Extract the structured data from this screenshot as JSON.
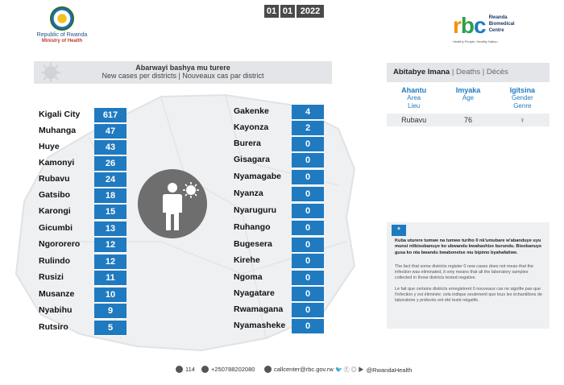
{
  "logos": {
    "left_line1": "Republic of Rwanda",
    "left_line2": "Ministry of Health",
    "right_mark": "rbc",
    "right_name": [
      "Rwanda",
      "Biomedical",
      "Centre"
    ],
    "right_tagline": "Healthy People, Healthy Nation"
  },
  "header": {
    "title": "Abarwayi bashya mu turere",
    "subtitle": "New cases per districts  |  Nouveaux cas par district",
    "date": {
      "day": "01",
      "month": "01",
      "year": "2022"
    }
  },
  "districts_left": [
    {
      "name": "Kigali City",
      "value": "617"
    },
    {
      "name": "Muhanga",
      "value": "47"
    },
    {
      "name": "Huye",
      "value": "43"
    },
    {
      "name": "Kamonyi",
      "value": "26"
    },
    {
      "name": "Rubavu",
      "value": "24"
    },
    {
      "name": "Gatsibo",
      "value": "18"
    },
    {
      "name": "Karongi",
      "value": "15"
    },
    {
      "name": "Gicumbi",
      "value": "13"
    },
    {
      "name": "Ngororero",
      "value": "12"
    },
    {
      "name": "Rulindo",
      "value": "12"
    },
    {
      "name": "Rusizi",
      "value": "11"
    },
    {
      "name": "Musanze",
      "value": "10"
    },
    {
      "name": "Nyabihu",
      "value": "9"
    },
    {
      "name": "Rutsiro",
      "value": "5"
    }
  ],
  "districts_right": [
    {
      "name": "Gakenke",
      "value": "4"
    },
    {
      "name": "Kayonza",
      "value": "2"
    },
    {
      "name": "Burera",
      "value": "0"
    },
    {
      "name": "Gisagara",
      "value": "0"
    },
    {
      "name": "Nyamagabe",
      "value": "0"
    },
    {
      "name": "Nyanza",
      "value": "0"
    },
    {
      "name": "Nyaruguru",
      "value": "0"
    },
    {
      "name": "Ruhango",
      "value": "0"
    },
    {
      "name": "Bugesera",
      "value": "0"
    },
    {
      "name": "Kirehe",
      "value": "0"
    },
    {
      "name": "Ngoma",
      "value": "0"
    },
    {
      "name": "Nyagatare",
      "value": "0"
    },
    {
      "name": "Rwamagana",
      "value": "0"
    },
    {
      "name": "Nyamasheke",
      "value": "0"
    }
  ],
  "deaths": {
    "title": "Abitabye Imana",
    "deaths_en": "Deaths",
    "deaths_fr": "Décès",
    "cols": [
      {
        "main": "Ahantu",
        "en": "Area",
        "fr": "Lieu"
      },
      {
        "main": "Imyaka",
        "en": "Age",
        "fr": ""
      },
      {
        "main": "Igitsina",
        "en": "Gender",
        "fr": "Genre"
      }
    ],
    "row": {
      "area": "Rubavu",
      "age": "76",
      "gender": "♀"
    }
  },
  "note": {
    "badge": "*",
    "kinyarwanda": "Kuba uturere tumwe na tumwe turiho 0 nk'umubare w'abanduye uyu munsi ntibisobanuye ko ubwandu bwahashize burundu. Bisobanuye gusa ko nta bwandu bwabonetse mu bipimo byahafatiwe.",
    "english": "The fact that some districts register 0 new cases does not mean that the infection was eliminated, it only means that all the laboratory samples collected in those districts tested negative.",
    "french": "Le fait que certains districts enregistrent 0 nouveaux cas ne signifie pas que l'infection y est éliminée; cela indique seulement que tous les échantillons de laboratoire y prélevés ont été testé négatifs."
  },
  "footer": {
    "hotline": "114",
    "phone": "+250788202080",
    "email": "callcenter@rbc.gov.rw",
    "social": "@RwandaHealth"
  },
  "colors": {
    "accent": "#1f7ac0",
    "header_bg": "#e3e5e8",
    "date_bg": "#4a4a4a",
    "circle": "#6e6e6e"
  }
}
